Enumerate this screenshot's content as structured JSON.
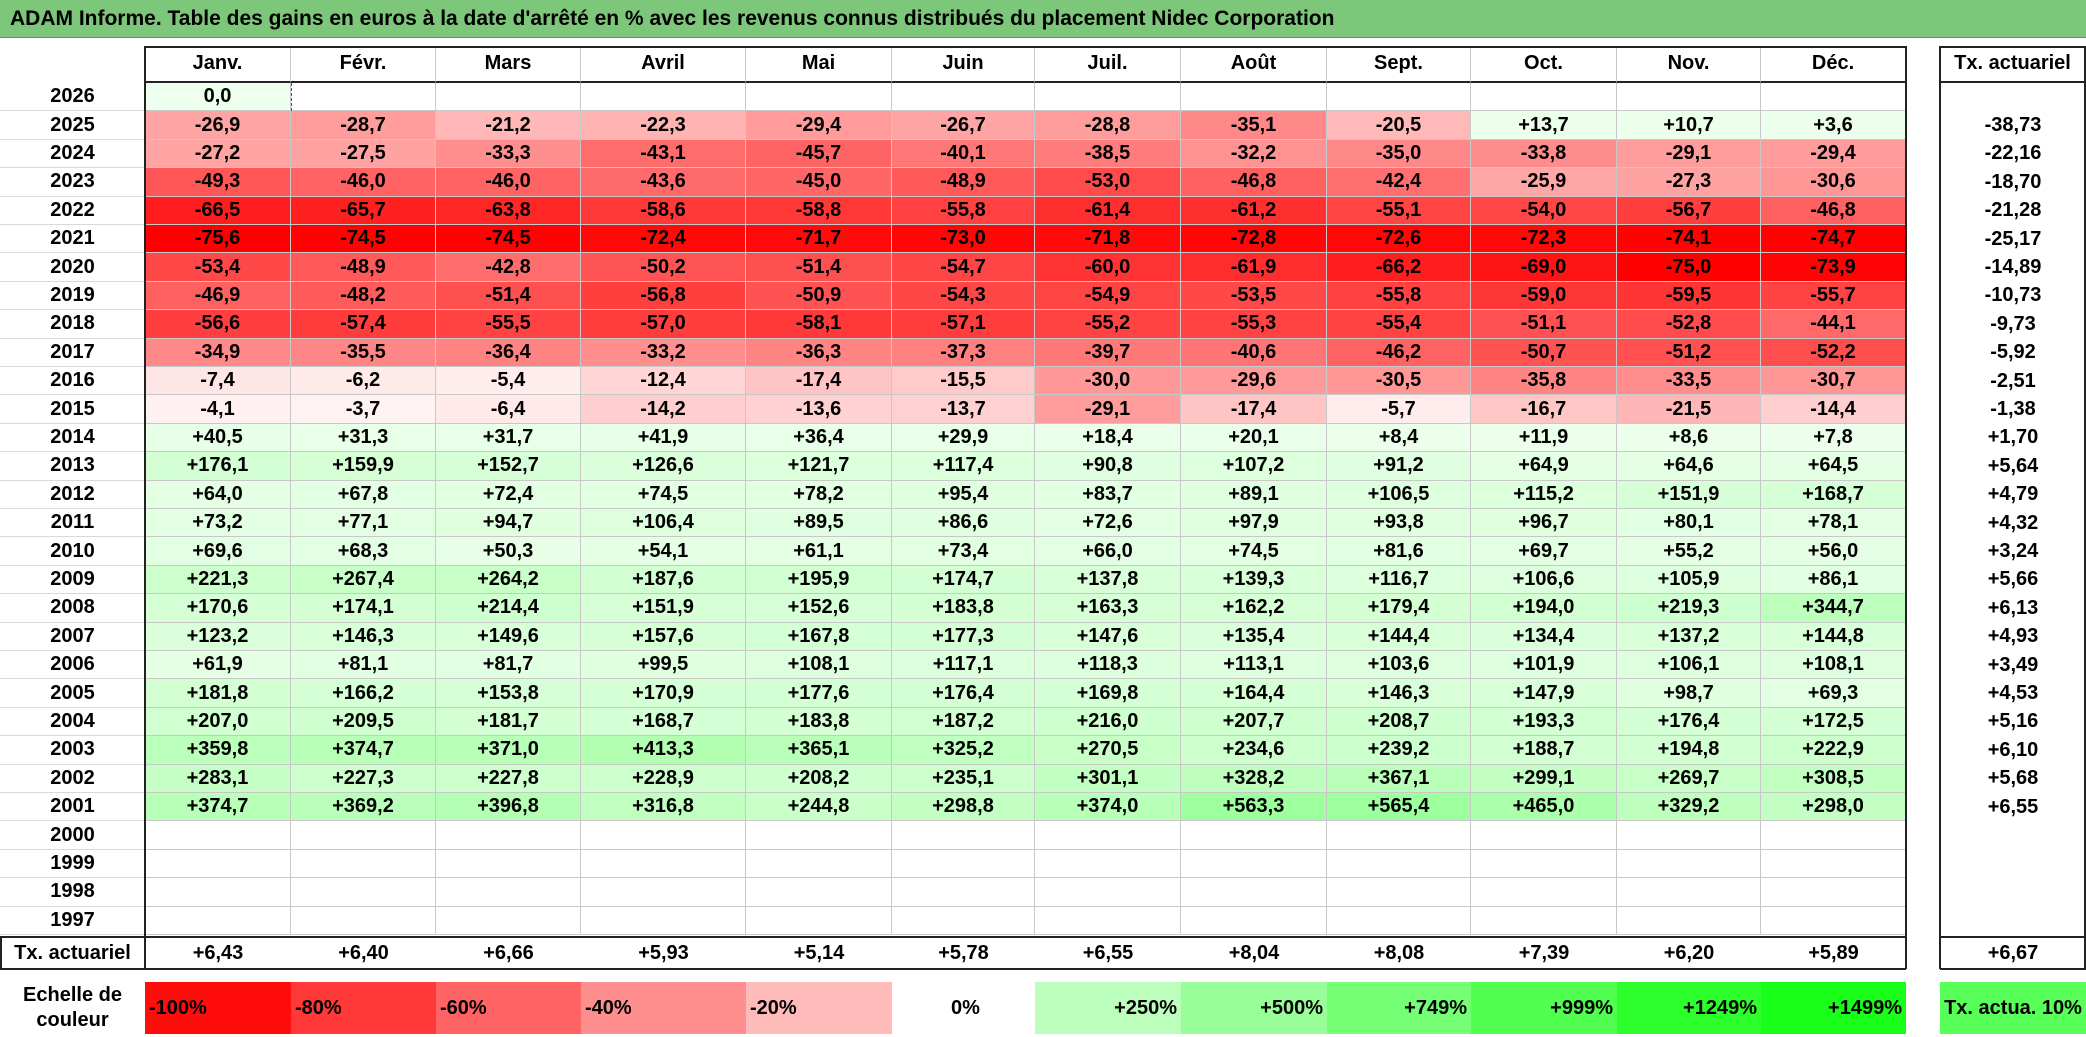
{
  "title": "ADAM Informe. Table des gains en euros à la date d'arrêté en % avec les revenus connus distribués du placement Nidec Corporation",
  "colors": {
    "title_bg": "#7dc77a",
    "neg_base": "#ff0000",
    "pos_base": "#00ff00"
  },
  "chart_data": {
    "type": "table",
    "columns": [
      "Janv.",
      "Févr.",
      "Mars",
      "Avril",
      "Mai",
      "Juin",
      "Juil.",
      "Août",
      "Sept.",
      "Oct.",
      "Nov.",
      "Déc."
    ],
    "annual_header": "Tx. actuariel",
    "rows": [
      {
        "year": "2026",
        "values": [
          "0,0",
          "",
          "",
          "",
          "",
          "",
          "",
          "",
          "",
          "",
          "",
          ""
        ],
        "annual": ""
      },
      {
        "year": "2025",
        "values": [
          "-26,9",
          "-28,7",
          "-21,2",
          "-22,3",
          "-29,4",
          "-26,7",
          "-28,8",
          "-35,1",
          "-20,5",
          "+13,7",
          "+10,7",
          "+3,6"
        ],
        "annual": "-38,73"
      },
      {
        "year": "2024",
        "values": [
          "-27,2",
          "-27,5",
          "-33,3",
          "-43,1",
          "-45,7",
          "-40,1",
          "-38,5",
          "-32,2",
          "-35,0",
          "-33,8",
          "-29,1",
          "-29,4"
        ],
        "annual": "-22,16"
      },
      {
        "year": "2023",
        "values": [
          "-49,3",
          "-46,0",
          "-46,0",
          "-43,6",
          "-45,0",
          "-48,9",
          "-53,0",
          "-46,8",
          "-42,4",
          "-25,9",
          "-27,3",
          "-30,6"
        ],
        "annual": "-18,70"
      },
      {
        "year": "2022",
        "values": [
          "-66,5",
          "-65,7",
          "-63,8",
          "-58,6",
          "-58,8",
          "-55,8",
          "-61,4",
          "-61,2",
          "-55,1",
          "-54,0",
          "-56,7",
          "-46,8"
        ],
        "annual": "-21,28"
      },
      {
        "year": "2021",
        "values": [
          "-75,6",
          "-74,5",
          "-74,5",
          "-72,4",
          "-71,7",
          "-73,0",
          "-71,8",
          "-72,8",
          "-72,6",
          "-72,3",
          "-74,1",
          "-74,7"
        ],
        "annual": "-25,17"
      },
      {
        "year": "2020",
        "values": [
          "-53,4",
          "-48,9",
          "-42,8",
          "-50,2",
          "-51,4",
          "-54,7",
          "-60,0",
          "-61,9",
          "-66,2",
          "-69,0",
          "-75,0",
          "-73,9"
        ],
        "annual": "-14,89"
      },
      {
        "year": "2019",
        "values": [
          "-46,9",
          "-48,2",
          "-51,4",
          "-56,8",
          "-50,9",
          "-54,3",
          "-54,9",
          "-53,5",
          "-55,8",
          "-59,0",
          "-59,5",
          "-55,7"
        ],
        "annual": "-10,73"
      },
      {
        "year": "2018",
        "values": [
          "-56,6",
          "-57,4",
          "-55,5",
          "-57,0",
          "-58,1",
          "-57,1",
          "-55,2",
          "-55,3",
          "-55,4",
          "-51,1",
          "-52,8",
          "-44,1"
        ],
        "annual": "-9,73"
      },
      {
        "year": "2017",
        "values": [
          "-34,9",
          "-35,5",
          "-36,4",
          "-33,2",
          "-36,3",
          "-37,3",
          "-39,7",
          "-40,6",
          "-46,2",
          "-50,7",
          "-51,2",
          "-52,2"
        ],
        "annual": "-5,92"
      },
      {
        "year": "2016",
        "values": [
          "-7,4",
          "-6,2",
          "-5,4",
          "-12,4",
          "-17,4",
          "-15,5",
          "-30,0",
          "-29,6",
          "-30,5",
          "-35,8",
          "-33,5",
          "-30,7"
        ],
        "annual": "-2,51"
      },
      {
        "year": "2015",
        "values": [
          "-4,1",
          "-3,7",
          "-6,4",
          "-14,2",
          "-13,6",
          "-13,7",
          "-29,1",
          "-17,4",
          "-5,7",
          "-16,7",
          "-21,5",
          "-14,4"
        ],
        "annual": "-1,38"
      },
      {
        "year": "2014",
        "values": [
          "+40,5",
          "+31,3",
          "+31,7",
          "+41,9",
          "+36,4",
          "+29,9",
          "+18,4",
          "+20,1",
          "+8,4",
          "+11,9",
          "+8,6",
          "+7,8"
        ],
        "annual": "+1,70"
      },
      {
        "year": "2013",
        "values": [
          "+176,1",
          "+159,9",
          "+152,7",
          "+126,6",
          "+121,7",
          "+117,4",
          "+90,8",
          "+107,2",
          "+91,2",
          "+64,9",
          "+64,6",
          "+64,5"
        ],
        "annual": "+5,64"
      },
      {
        "year": "2012",
        "values": [
          "+64,0",
          "+67,8",
          "+72,4",
          "+74,5",
          "+78,2",
          "+95,4",
          "+83,7",
          "+89,1",
          "+106,5",
          "+115,2",
          "+151,9",
          "+168,7"
        ],
        "annual": "+4,79"
      },
      {
        "year": "2011",
        "values": [
          "+73,2",
          "+77,1",
          "+94,7",
          "+106,4",
          "+89,5",
          "+86,6",
          "+72,6",
          "+97,9",
          "+93,8",
          "+96,7",
          "+80,1",
          "+78,1"
        ],
        "annual": "+4,32"
      },
      {
        "year": "2010",
        "values": [
          "+69,6",
          "+68,3",
          "+50,3",
          "+54,1",
          "+61,1",
          "+73,4",
          "+66,0",
          "+74,5",
          "+81,6",
          "+69,7",
          "+55,2",
          "+56,0"
        ],
        "annual": "+3,24"
      },
      {
        "year": "2009",
        "values": [
          "+221,3",
          "+267,4",
          "+264,2",
          "+187,6",
          "+195,9",
          "+174,7",
          "+137,8",
          "+139,3",
          "+116,7",
          "+106,6",
          "+105,9",
          "+86,1"
        ],
        "annual": "+5,66"
      },
      {
        "year": "2008",
        "values": [
          "+170,6",
          "+174,1",
          "+214,4",
          "+151,9",
          "+152,6",
          "+183,8",
          "+163,3",
          "+162,2",
          "+179,4",
          "+194,0",
          "+219,3",
          "+344,7"
        ],
        "annual": "+6,13"
      },
      {
        "year": "2007",
        "values": [
          "+123,2",
          "+146,3",
          "+149,6",
          "+157,6",
          "+167,8",
          "+177,3",
          "+147,6",
          "+135,4",
          "+144,4",
          "+134,4",
          "+137,2",
          "+144,8"
        ],
        "annual": "+4,93"
      },
      {
        "year": "2006",
        "values": [
          "+61,9",
          "+81,1",
          "+81,7",
          "+99,5",
          "+108,1",
          "+117,1",
          "+118,3",
          "+113,1",
          "+103,6",
          "+101,9",
          "+106,1",
          "+108,1"
        ],
        "annual": "+3,49"
      },
      {
        "year": "2005",
        "values": [
          "+181,8",
          "+166,2",
          "+153,8",
          "+170,9",
          "+177,6",
          "+176,4",
          "+169,8",
          "+164,4",
          "+146,3",
          "+147,9",
          "+98,7",
          "+69,3"
        ],
        "annual": "+4,53"
      },
      {
        "year": "2004",
        "values": [
          "+207,0",
          "+209,5",
          "+181,7",
          "+168,7",
          "+183,8",
          "+187,2",
          "+216,0",
          "+207,7",
          "+208,7",
          "+193,3",
          "+176,4",
          "+172,5"
        ],
        "annual": "+5,16"
      },
      {
        "year": "2003",
        "values": [
          "+359,8",
          "+374,7",
          "+371,0",
          "+413,3",
          "+365,1",
          "+325,2",
          "+270,5",
          "+234,6",
          "+239,2",
          "+188,7",
          "+194,8",
          "+222,9"
        ],
        "annual": "+6,10"
      },
      {
        "year": "2002",
        "values": [
          "+283,1",
          "+227,3",
          "+227,8",
          "+228,9",
          "+208,2",
          "+235,1",
          "+301,1",
          "+328,2",
          "+367,1",
          "+299,1",
          "+269,7",
          "+308,5"
        ],
        "annual": "+5,68"
      },
      {
        "year": "2001",
        "values": [
          "+374,7",
          "+369,2",
          "+396,8",
          "+316,8",
          "+244,8",
          "+298,8",
          "+374,0",
          "+563,3",
          "+565,4",
          "+465,0",
          "+329,2",
          "+298,0"
        ],
        "annual": "+6,55"
      },
      {
        "year": "2000",
        "values": [
          "",
          "",
          "",
          "",
          "",
          "",
          "",
          "",
          "",
          "",
          "",
          ""
        ],
        "annual": ""
      },
      {
        "year": "1999",
        "values": [
          "",
          "",
          "",
          "",
          "",
          "",
          "",
          "",
          "",
          "",
          "",
          ""
        ],
        "annual": ""
      },
      {
        "year": "1998",
        "values": [
          "",
          "",
          "",
          "",
          "",
          "",
          "",
          "",
          "",
          "",
          "",
          ""
        ],
        "annual": ""
      },
      {
        "year": "1997",
        "values": [
          "",
          "",
          "",
          "",
          "",
          "",
          "",
          "",
          "",
          "",
          "",
          ""
        ],
        "annual": ""
      }
    ],
    "footer": {
      "label": "Tx. actuariel",
      "values": [
        "+6,43",
        "+6,40",
        "+6,66",
        "+5,93",
        "+5,14",
        "+5,78",
        "+6,55",
        "+8,04",
        "+8,08",
        "+7,39",
        "+6,20",
        "+5,89"
      ],
      "total": "+6,67"
    },
    "legend": {
      "label": "Echelle de couleur",
      "items": [
        {
          "text": "-100%",
          "value": -100
        },
        {
          "text": "-80%",
          "value": -80
        },
        {
          "text": "-60%",
          "value": -60
        },
        {
          "text": "-40%",
          "value": -40
        },
        {
          "text": "-20%",
          "value": -20
        },
        {
          "text": "0%",
          "value": 0
        },
        {
          "text": "+250%",
          "value": 250
        },
        {
          "text": "+500%",
          "value": 500
        },
        {
          "text": "+749%",
          "value": 749
        },
        {
          "text": "+999%",
          "value": 999
        },
        {
          "text": "+1249%",
          "value": 1249
        },
        {
          "text": "+1499%",
          "value": 1499
        }
      ],
      "rate_label": "Tx. actua. 10%"
    }
  }
}
